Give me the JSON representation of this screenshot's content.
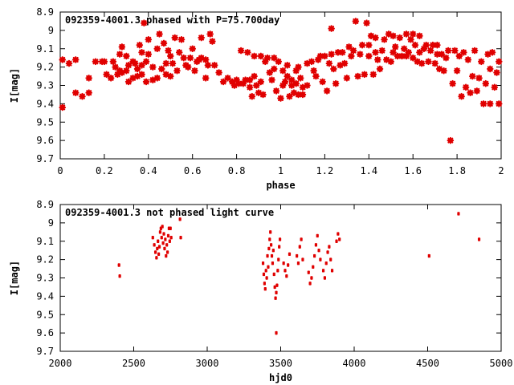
{
  "chart_data": [
    {
      "type": "scatter",
      "title": "092359-4001.3 phased with P=75.700day",
      "xlabel": "phase",
      "ylabel": "I[mag]",
      "xlim": [
        0,
        2
      ],
      "ylim": [
        8.9,
        9.7
      ],
      "y_inverted": true,
      "grid": false,
      "legend": "none",
      "marker": "star",
      "color": "#e00000",
      "x_ticks": [
        "0",
        "0.2",
        "0.4",
        "0.6",
        "0.8",
        "1",
        "1.2",
        "1.4",
        "1.6",
        "1.8",
        "2"
      ],
      "y_ticks": [
        "8.9",
        "9",
        "9.1",
        "9.2",
        "9.3",
        "9.4",
        "9.5",
        "9.6",
        "9.7"
      ],
      "points": [
        [
          0.01,
          9.16
        ],
        [
          0.01,
          9.42
        ],
        [
          0.04,
          9.18
        ],
        [
          0.07,
          9.16
        ],
        [
          0.07,
          9.34
        ],
        [
          0.1,
          9.36
        ],
        [
          0.13,
          9.34
        ],
        [
          0.13,
          9.26
        ],
        [
          0.16,
          9.17
        ],
        [
          0.19,
          9.17
        ],
        [
          0.2,
          9.17
        ],
        [
          0.21,
          9.24
        ],
        [
          0.23,
          9.26
        ],
        [
          0.24,
          9.17
        ],
        [
          0.25,
          9.2
        ],
        [
          0.26,
          9.24
        ],
        [
          0.27,
          9.22
        ],
        [
          0.27,
          9.13
        ],
        [
          0.28,
          9.09
        ],
        [
          0.28,
          9.23
        ],
        [
          0.3,
          9.22
        ],
        [
          0.3,
          9.14
        ],
        [
          0.31,
          9.19
        ],
        [
          0.31,
          9.28
        ],
        [
          0.33,
          9.26
        ],
        [
          0.33,
          9.17
        ],
        [
          0.34,
          9.18
        ],
        [
          0.35,
          9.25
        ],
        [
          0.35,
          9.21
        ],
        [
          0.36,
          9.08
        ],
        [
          0.37,
          9.24
        ],
        [
          0.37,
          9.12
        ],
        [
          0.37,
          9.19
        ],
        [
          0.38,
          8.96
        ],
        [
          0.39,
          9.17
        ],
        [
          0.39,
          9.28
        ],
        [
          0.4,
          9.05
        ],
        [
          0.4,
          9.13
        ],
        [
          0.42,
          9.2
        ],
        [
          0.42,
          9.27
        ],
        [
          0.44,
          9.26
        ],
        [
          0.44,
          9.1
        ],
        [
          0.45,
          9.02
        ],
        [
          0.46,
          9.21
        ],
        [
          0.47,
          9.07
        ],
        [
          0.48,
          9.18
        ],
        [
          0.48,
          9.24
        ],
        [
          0.49,
          9.11
        ],
        [
          0.5,
          9.14
        ],
        [
          0.5,
          9.25
        ],
        [
          0.51,
          9.18
        ],
        [
          0.52,
          9.04
        ],
        [
          0.53,
          9.22
        ],
        [
          0.54,
          9.12
        ],
        [
          0.55,
          9.05
        ],
        [
          0.56,
          9.15
        ],
        [
          0.57,
          9.19
        ],
        [
          0.58,
          9.2
        ],
        [
          0.59,
          9.15
        ],
        [
          0.6,
          9.1
        ],
        [
          0.61,
          9.22
        ],
        [
          0.62,
          9.17
        ],
        [
          0.63,
          9.16
        ],
        [
          0.64,
          9.15
        ],
        [
          0.64,
          9.04
        ],
        [
          0.66,
          9.16
        ],
        [
          0.66,
          9.26
        ],
        [
          0.67,
          9.19
        ],
        [
          0.68,
          9.02
        ],
        [
          0.69,
          9.06
        ],
        [
          0.7,
          9.19
        ],
        [
          0.72,
          9.23
        ],
        [
          0.74,
          9.28
        ],
        [
          0.76,
          9.26
        ],
        [
          0.78,
          9.28
        ],
        [
          0.79,
          9.3
        ],
        [
          0.8,
          9.27
        ],
        [
          0.81,
          9.29
        ],
        [
          0.82,
          9.11
        ],
        [
          0.83,
          9.29
        ],
        [
          0.84,
          9.27
        ],
        [
          0.85,
          9.12
        ],
        [
          0.86,
          9.31
        ],
        [
          0.86,
          9.27
        ],
        [
          0.87,
          9.36
        ],
        [
          0.88,
          9.14
        ],
        [
          0.88,
          9.25
        ],
        [
          0.89,
          9.3
        ],
        [
          0.9,
          9.34
        ],
        [
          0.91,
          9.14
        ],
        [
          0.91,
          9.28
        ],
        [
          0.92,
          9.35
        ],
        [
          0.93,
          9.17
        ],
        [
          0.94,
          9.15
        ],
        [
          0.95,
          9.23
        ],
        [
          0.96,
          9.27
        ],
        [
          0.97,
          9.21
        ],
        [
          0.97,
          9.15
        ],
        [
          0.98,
          9.33
        ],
        [
          0.99,
          9.17
        ],
        [
          1.0,
          9.37
        ],
        [
          1.01,
          9.3
        ],
        [
          1.01,
          9.22
        ],
        [
          1.02,
          9.28
        ],
        [
          1.03,
          9.19
        ],
        [
          1.03,
          9.25
        ],
        [
          1.04,
          9.36
        ],
        [
          1.05,
          9.3
        ],
        [
          1.05,
          9.27
        ],
        [
          1.06,
          9.34
        ],
        [
          1.07,
          9.22
        ],
        [
          1.07,
          9.29
        ],
        [
          1.08,
          9.2
        ],
        [
          1.08,
          9.35
        ],
        [
          1.09,
          9.26
        ],
        [
          1.1,
          9.35
        ],
        [
          1.1,
          9.31
        ],
        [
          1.12,
          9.18
        ],
        [
          1.12,
          9.3
        ],
        [
          1.14,
          9.17
        ],
        [
          1.15,
          9.22
        ],
        [
          1.16,
          9.25
        ],
        [
          1.17,
          9.16
        ],
        [
          1.18,
          9.14
        ],
        [
          1.19,
          9.28
        ],
        [
          1.2,
          9.14
        ],
        [
          1.21,
          9.33
        ],
        [
          1.22,
          9.18
        ],
        [
          1.23,
          9.13
        ],
        [
          1.23,
          8.99
        ],
        [
          1.24,
          9.21
        ],
        [
          1.25,
          9.29
        ],
        [
          1.26,
          9.12
        ],
        [
          1.27,
          9.19
        ],
        [
          1.28,
          9.12
        ],
        [
          1.29,
          9.18
        ],
        [
          1.3,
          9.26
        ],
        [
          1.31,
          9.09
        ],
        [
          1.32,
          9.14
        ],
        [
          1.33,
          9.11
        ],
        [
          1.34,
          8.95
        ],
        [
          1.35,
          9.25
        ],
        [
          1.36,
          9.13
        ],
        [
          1.37,
          9.08
        ],
        [
          1.38,
          9.24
        ],
        [
          1.39,
          8.96
        ],
        [
          1.4,
          9.08
        ],
        [
          1.4,
          9.14
        ],
        [
          1.41,
          9.03
        ],
        [
          1.42,
          9.24
        ],
        [
          1.43,
          9.12
        ],
        [
          1.43,
          9.04
        ],
        [
          1.44,
          9.16
        ],
        [
          1.45,
          9.21
        ],
        [
          1.46,
          9.11
        ],
        [
          1.47,
          9.05
        ],
        [
          1.48,
          9.16
        ],
        [
          1.49,
          9.02
        ],
        [
          1.5,
          9.17
        ],
        [
          1.51,
          9.12
        ],
        [
          1.51,
          9.03
        ],
        [
          1.52,
          9.09
        ],
        [
          1.53,
          9.14
        ],
        [
          1.54,
          9.04
        ],
        [
          1.55,
          9.14
        ],
        [
          1.56,
          9.1
        ],
        [
          1.57,
          9.02
        ],
        [
          1.57,
          9.14
        ],
        [
          1.58,
          9.12
        ],
        [
          1.59,
          9.05
        ],
        [
          1.6,
          9.02
        ],
        [
          1.6,
          9.15
        ],
        [
          1.61,
          9.08
        ],
        [
          1.62,
          9.17
        ],
        [
          1.63,
          9.03
        ],
        [
          1.63,
          9.12
        ],
        [
          1.64,
          9.18
        ],
        [
          1.65,
          9.1
        ],
        [
          1.66,
          9.08
        ],
        [
          1.67,
          9.17
        ],
        [
          1.68,
          9.11
        ],
        [
          1.69,
          9.08
        ],
        [
          1.7,
          9.18
        ],
        [
          1.71,
          9.13
        ],
        [
          1.71,
          9.08
        ],
        [
          1.72,
          9.21
        ],
        [
          1.73,
          9.13
        ],
        [
          1.74,
          9.22
        ],
        [
          1.75,
          9.15
        ],
        [
          1.76,
          9.11
        ],
        [
          1.77,
          9.6
        ],
        [
          1.78,
          9.29
        ],
        [
          1.79,
          9.11
        ],
        [
          1.8,
          9.22
        ],
        [
          1.81,
          9.14
        ],
        [
          1.82,
          9.36
        ],
        [
          1.83,
          9.12
        ],
        [
          1.84,
          9.31
        ],
        [
          1.85,
          9.16
        ],
        [
          1.86,
          9.34
        ],
        [
          1.87,
          9.25
        ],
        [
          1.88,
          9.11
        ],
        [
          1.89,
          9.33
        ],
        [
          1.9,
          9.26
        ],
        [
          1.91,
          9.17
        ],
        [
          1.92,
          9.4
        ],
        [
          1.93,
          9.29
        ],
        [
          1.94,
          9.13
        ],
        [
          1.95,
          9.21
        ],
        [
          1.95,
          9.4
        ],
        [
          1.96,
          9.12
        ],
        [
          1.97,
          9.31
        ],
        [
          1.98,
          9.23
        ],
        [
          1.99,
          9.17
        ],
        [
          1.99,
          9.4
        ]
      ]
    },
    {
      "type": "scatter",
      "title": "092359-4001.3 not phased light curve",
      "xlabel": "hjd0",
      "ylabel": "I[mag]",
      "xlim": [
        2000,
        5000
      ],
      "ylim": [
        8.9,
        9.7
      ],
      "y_inverted": true,
      "grid": false,
      "legend": "none",
      "marker": "dot",
      "color": "#e00000",
      "x_ticks": [
        "2000",
        "2500",
        "3000",
        "3500",
        "4000",
        "4500",
        "5000"
      ],
      "y_ticks": [
        "8.9",
        "9",
        "9.1",
        "9.2",
        "9.3",
        "9.4",
        "9.5",
        "9.6",
        "9.7"
      ],
      "points": [
        [
          2400,
          9.23
        ],
        [
          2405,
          9.29
        ],
        [
          2630,
          9.08
        ],
        [
          2640,
          9.12
        ],
        [
          2648,
          9.16
        ],
        [
          2655,
          9.19
        ],
        [
          2660,
          9.14
        ],
        [
          2665,
          9.1
        ],
        [
          2670,
          9.17
        ],
        [
          2675,
          9.13
        ],
        [
          2680,
          9.05
        ],
        [
          2685,
          9.03
        ],
        [
          2690,
          9.08
        ],
        [
          2695,
          9.02
        ],
        [
          2700,
          9.11
        ],
        [
          2705,
          9.06
        ],
        [
          2710,
          9.14
        ],
        [
          2715,
          9.09
        ],
        [
          2720,
          9.18
        ],
        [
          2725,
          9.12
        ],
        [
          2730,
          9.16
        ],
        [
          2735,
          9.07
        ],
        [
          2740,
          9.03
        ],
        [
          2745,
          9.1
        ],
        [
          2750,
          9.03
        ],
        [
          2755,
          9.08
        ],
        [
          2815,
          8.98
        ],
        [
          2820,
          9.08
        ],
        [
          3380,
          9.22
        ],
        [
          3385,
          9.28
        ],
        [
          3390,
          9.33
        ],
        [
          3395,
          9.36
        ],
        [
          3400,
          9.26
        ],
        [
          3405,
          9.3
        ],
        [
          3410,
          9.18
        ],
        [
          3415,
          9.24
        ],
        [
          3420,
          9.14
        ],
        [
          3425,
          9.09
        ],
        [
          3430,
          9.05
        ],
        [
          3435,
          9.12
        ],
        [
          3440,
          9.18
        ],
        [
          3445,
          9.22
        ],
        [
          3450,
          9.15
        ],
        [
          3455,
          9.28
        ],
        [
          3460,
          9.35
        ],
        [
          3465,
          9.41
        ],
        [
          3470,
          9.38
        ],
        [
          3475,
          9.34
        ],
        [
          3480,
          9.26
        ],
        [
          3485,
          9.2
        ],
        [
          3490,
          9.13
        ],
        [
          3495,
          9.09
        ],
        [
          3470,
          9.6
        ],
        [
          3520,
          9.22
        ],
        [
          3530,
          9.26
        ],
        [
          3540,
          9.29
        ],
        [
          3550,
          9.23
        ],
        [
          3560,
          9.17
        ],
        [
          3610,
          9.18
        ],
        [
          3620,
          9.22
        ],
        [
          3630,
          9.13
        ],
        [
          3640,
          9.09
        ],
        [
          3650,
          9.2
        ],
        [
          3690,
          9.27
        ],
        [
          3700,
          9.33
        ],
        [
          3710,
          9.3
        ],
        [
          3720,
          9.24
        ],
        [
          3730,
          9.18
        ],
        [
          3740,
          9.12
        ],
        [
          3750,
          9.07
        ],
        [
          3760,
          9.15
        ],
        [
          3770,
          9.2
        ],
        [
          3790,
          9.26
        ],
        [
          3800,
          9.3
        ],
        [
          3810,
          9.22
        ],
        [
          3820,
          9.16
        ],
        [
          3830,
          9.13
        ],
        [
          3840,
          9.2
        ],
        [
          3850,
          9.26
        ],
        [
          3880,
          9.1
        ],
        [
          3890,
          9.06
        ],
        [
          3900,
          9.09
        ],
        [
          4510,
          9.18
        ],
        [
          4710,
          8.95
        ],
        [
          4850,
          9.09
        ]
      ]
    }
  ]
}
